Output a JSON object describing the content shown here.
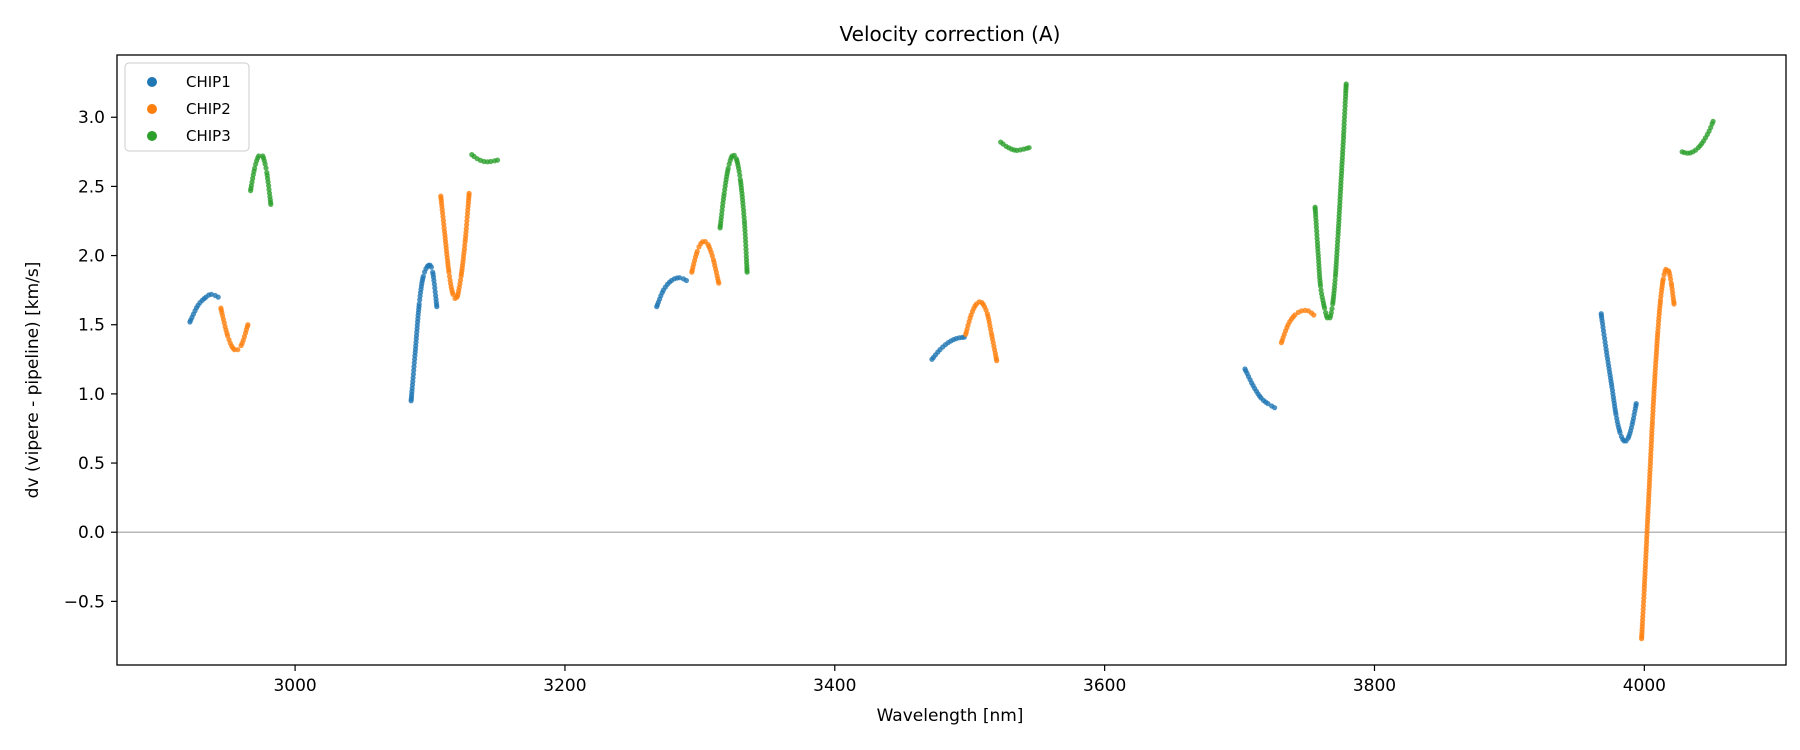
{
  "chart_data": {
    "type": "scatter",
    "title": "Velocity correction (A)",
    "xlabel": "Wavelength [nm]",
    "ylabel": "dv (vipere - pipeline) [km/s]",
    "xlim": [
      2868,
      4105
    ],
    "ylim": [
      -0.96,
      3.45
    ],
    "xticks": [
      3000,
      3200,
      3400,
      3600,
      3800,
      4000
    ],
    "yticks": [
      -0.5,
      0.0,
      0.5,
      1.0,
      1.5,
      2.0,
      2.5,
      3.0
    ],
    "xtick_labels": [
      "3000",
      "3200",
      "3400",
      "3600",
      "3800",
      "4000"
    ],
    "ytick_labels": [
      "−0.5",
      "0.0",
      "0.5",
      "1.0",
      "1.5",
      "2.0",
      "2.5",
      "3.0"
    ],
    "reference_line_y": 0.0,
    "grid": false,
    "legend_position": "top-left",
    "series": [
      {
        "name": "CHIP1",
        "color": "#1f77b4",
        "segments": [
          {
            "x": [
              2922,
              2928,
              2934,
              2938,
              2943
            ],
            "y": [
              1.52,
              1.64,
              1.7,
              1.72,
              1.7
            ]
          },
          {
            "x": [
              3086,
              3089,
              3092,
              3095,
              3099,
              3102,
              3105
            ],
            "y": [
              0.95,
              1.3,
              1.65,
              1.85,
              1.93,
              1.88,
              1.63
            ]
          },
          {
            "x": [
              3268,
              3273,
              3279,
              3285,
              3290
            ],
            "y": [
              1.63,
              1.75,
              1.82,
              1.84,
              1.82
            ]
          },
          {
            "x": [
              3472,
              3478,
              3484,
              3490,
              3496
            ],
            "y": [
              1.25,
              1.32,
              1.37,
              1.4,
              1.41
            ]
          },
          {
            "x": [
              3704,
              3710,
              3716,
              3721,
              3726
            ],
            "y": [
              1.18,
              1.06,
              0.97,
              0.93,
              0.9
            ]
          },
          {
            "x": [
              3968,
              3972,
              3976,
              3979,
              3982,
              3985,
              3988,
              3991,
              3994
            ],
            "y": [
              1.58,
              1.3,
              1.05,
              0.85,
              0.72,
              0.66,
              0.68,
              0.78,
              0.93
            ]
          }
        ]
      },
      {
        "name": "CHIP2",
        "color": "#ff7f0e",
        "segments": [
          {
            "x": [
              2945,
              2950,
              2955,
              2960,
              2965
            ],
            "y": [
              1.62,
              1.42,
              1.32,
              1.35,
              1.5
            ]
          },
          {
            "x": [
              3108,
              3111,
              3114,
              3117,
              3120,
              3123,
              3126,
              3129
            ],
            "y": [
              2.43,
              2.15,
              1.88,
              1.72,
              1.7,
              1.85,
              2.1,
              2.45
            ]
          },
          {
            "x": [
              3294,
              3298,
              3302,
              3306,
              3310,
              3314
            ],
            "y": [
              1.88,
              2.03,
              2.1,
              2.08,
              1.97,
              1.8
            ]
          },
          {
            "x": [
              3497,
              3501,
              3505,
              3509,
              3513,
              3516,
              3520
            ],
            "y": [
              1.43,
              1.57,
              1.65,
              1.66,
              1.58,
              1.44,
              1.24
            ]
          },
          {
            "x": [
              3731,
              3736,
              3741,
              3746,
              3751,
              3755
            ],
            "y": [
              1.37,
              1.5,
              1.57,
              1.6,
              1.6,
              1.57
            ]
          },
          {
            "x": [
              3998,
              4000,
              4002,
              4004,
              4006,
              4008,
              4010,
              4012,
              4014,
              4016,
              4018,
              4020,
              4022
            ],
            "y": [
              -0.77,
              -0.4,
              0.0,
              0.4,
              0.8,
              1.15,
              1.45,
              1.68,
              1.83,
              1.9,
              1.89,
              1.8,
              1.65
            ]
          }
        ]
      },
      {
        "name": "CHIP3",
        "color": "#2ca02c",
        "segments": [
          {
            "x": [
              2967,
              2970,
              2973,
              2976,
              2979,
              2982
            ],
            "y": [
              2.47,
              2.63,
              2.72,
              2.72,
              2.6,
              2.37
            ]
          },
          {
            "x": [
              3131,
              3135,
              3140,
              3145,
              3150
            ],
            "y": [
              2.73,
              2.7,
              2.68,
              2.68,
              2.69
            ]
          },
          {
            "x": [
              3315,
              3318,
              3321,
              3324,
              3327,
              3330,
              3333,
              3335
            ],
            "y": [
              2.2,
              2.45,
              2.63,
              2.72,
              2.7,
              2.55,
              2.25,
              1.88
            ]
          },
          {
            "x": [
              3523,
              3527,
              3531,
              3535,
              3540,
              3544
            ],
            "y": [
              2.82,
              2.79,
              2.77,
              2.76,
              2.77,
              2.78
            ]
          },
          {
            "x": [
              3756,
              3758,
              3760,
              3763,
              3765,
              3767,
              3769,
              3771,
              3773,
              3775,
              3777,
              3779
            ],
            "y": [
              2.35,
              2.05,
              1.78,
              1.62,
              1.55,
              1.55,
              1.65,
              1.85,
              2.15,
              2.5,
              2.85,
              3.24
            ]
          },
          {
            "x": [
              4028,
              4032,
              4036,
              4040,
              4044,
              4048,
              4051
            ],
            "y": [
              2.75,
              2.74,
              2.75,
              2.78,
              2.83,
              2.9,
              2.97
            ]
          }
        ]
      }
    ]
  }
}
